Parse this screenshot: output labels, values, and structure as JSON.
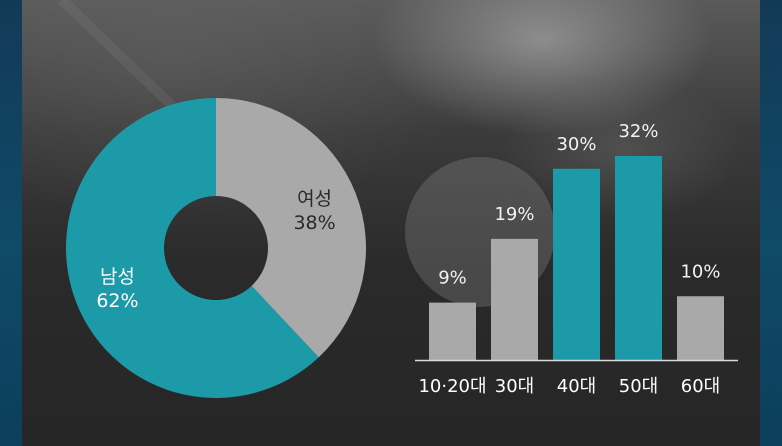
{
  "colors": {
    "teal": "#1d9aa7",
    "gray": "#a9a9a9",
    "axis": "#d9d9d9"
  },
  "chart_data": [
    {
      "type": "pie",
      "categories": [
        "남성",
        "여성"
      ],
      "values": [
        62,
        38
      ],
      "value_labels": [
        "62%",
        "38%"
      ],
      "colors": [
        "#1d9aa7",
        "#a9a9a9"
      ],
      "donut": true
    },
    {
      "type": "bar",
      "categories": [
        "10·20대",
        "30대",
        "40대",
        "50대",
        "60대"
      ],
      "values": [
        9,
        19,
        30,
        32,
        10
      ],
      "value_labels": [
        "9%",
        "19%",
        "30%",
        "32%",
        "10%"
      ],
      "colors": [
        "#a9a9a9",
        "#a9a9a9",
        "#1d9aa7",
        "#1d9aa7",
        "#a9a9a9"
      ],
      "ylim": [
        0,
        32
      ],
      "grid": false
    }
  ]
}
